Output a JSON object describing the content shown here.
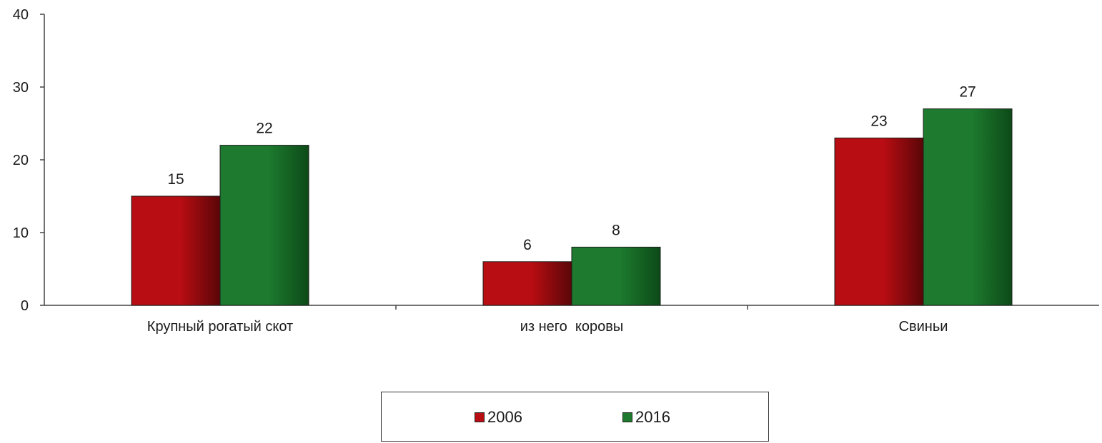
{
  "chart_data": {
    "type": "bar",
    "title": "",
    "xlabel": "",
    "ylabel": "",
    "ylim": [
      0,
      40
    ],
    "yticks": [
      0,
      10,
      20,
      30,
      40
    ],
    "categories": [
      "Крупный рогатый скот",
      "из него  коровы",
      "Свиньи"
    ],
    "series": [
      {
        "name": "2006",
        "values": [
          15,
          6,
          23
        ],
        "color": "#b80d12",
        "color_dark": "#5a0608"
      },
      {
        "name": "2016",
        "values": [
          22,
          8,
          27
        ],
        "color": "#1d7a2e",
        "color_dark": "#0d4a18"
      }
    ],
    "grid": false,
    "legend_position": "bottom-center",
    "data_labels": true
  }
}
